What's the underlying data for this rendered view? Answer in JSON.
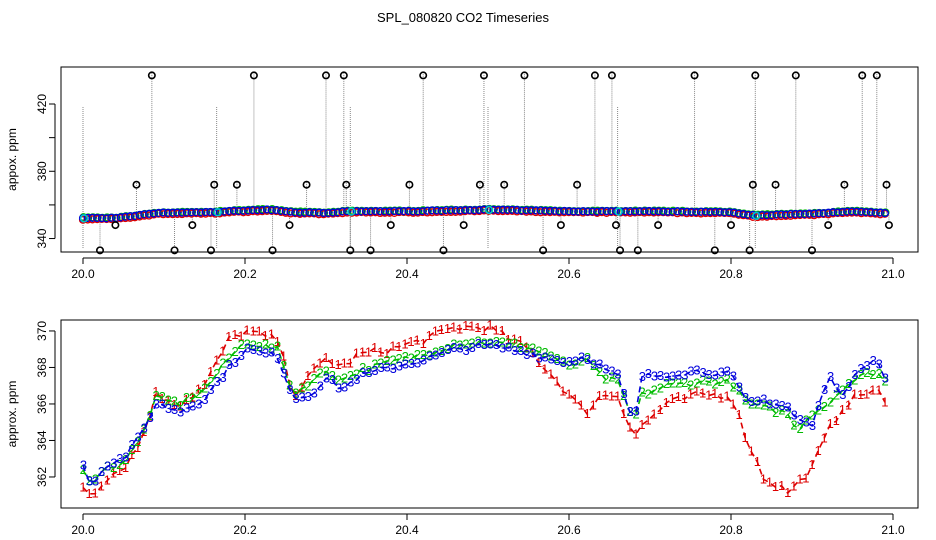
{
  "chart_data": {
    "title": "SPL_080820  CO2 Timeseries",
    "colors": {
      "red": "#dd0000",
      "green": "#00bb00",
      "blue": "#0000dd",
      "cyan": "#00c8c8",
      "black": "#000000",
      "gray": "#888888"
    },
    "panels": [
      {
        "type": "scatter",
        "ylabel": "appox. ppm",
        "xlim": [
          20.0,
          21.0
        ],
        "ylim": [
          332,
          442
        ],
        "xticks": [
          20.0,
          20.2,
          20.4,
          20.6,
          20.8,
          21.0
        ],
        "xtick_labels": [
          "20.0",
          "20.2",
          "20.4",
          "20.6",
          "20.8",
          "21.0"
        ],
        "yticks": [
          340,
          380,
          420
        ],
        "ytick_labels": [
          "340",
          "380",
          "420"
        ],
        "extra_yticks": [
          360,
          400
        ],
        "segments": [
          [
            20.0,
            20.165
          ],
          [
            20.165,
            20.33
          ],
          [
            20.33,
            20.5
          ],
          [
            20.5,
            20.66
          ],
          [
            20.66,
            20.83
          ],
          [
            20.83,
            20.99
          ]
        ],
        "baseline": {
          "x": [
            20.0,
            20.04,
            20.06,
            20.09,
            20.16,
            20.2,
            20.23,
            20.26,
            20.3,
            20.33,
            20.4,
            20.5,
            20.6,
            20.66,
            20.7,
            20.8,
            20.83,
            20.86,
            20.9,
            20.95,
            20.99
          ],
          "y": [
            352,
            352,
            353,
            355,
            355.5,
            356.5,
            357,
            355.5,
            355,
            356,
            356,
            357,
            356,
            356,
            356,
            355.5,
            353.5,
            354,
            354.5,
            356,
            355
          ]
        },
        "spikes": {
          "x": [
            20.021,
            20.04,
            20.066,
            20.085,
            20.113,
            20.135,
            20.158,
            20.162,
            20.19,
            20.211,
            20.234,
            20.255,
            20.276,
            20.3,
            20.322,
            20.325,
            20.33,
            20.355,
            20.38,
            20.403,
            20.42,
            20.445,
            20.47,
            20.49,
            20.495,
            20.52,
            20.545,
            20.568,
            20.59,
            20.61,
            20.632,
            20.653,
            20.658,
            20.663,
            20.685,
            20.71,
            20.755,
            20.78,
            20.8,
            20.823,
            20.827,
            20.83,
            20.855,
            20.88,
            20.9,
            20.92,
            20.94,
            20.962,
            20.98,
            20.992,
            20.995
          ],
          "y": [
            333,
            348,
            372,
            437,
            333,
            348,
            333,
            372,
            372,
            437,
            333,
            348,
            372,
            437,
            437,
            372,
            333,
            333,
            348,
            372,
            437,
            333,
            348,
            372,
            437,
            372,
            437,
            333,
            348,
            372,
            437,
            437,
            348,
            333,
            333,
            348,
            437,
            333,
            348,
            333,
            372,
            437,
            372,
            437,
            333,
            348,
            372,
            437,
            437,
            372,
            348
          ]
        }
      },
      {
        "type": "line",
        "ylabel": "approx. ppm",
        "xlim": [
          20.0,
          21.0
        ],
        "ylim": [
          360.3,
          370.6
        ],
        "xticks": [
          20.0,
          20.2,
          20.4,
          20.6,
          20.8,
          21.0
        ],
        "xtick_labels": [
          "20.0",
          "20.2",
          "20.4",
          "20.6",
          "20.8",
          "21.0"
        ],
        "yticks": [
          362,
          364,
          366,
          368,
          370
        ],
        "ytick_labels": [
          "362",
          "364",
          "366",
          "368",
          "370"
        ],
        "series": [
          {
            "name": "1",
            "label": "1",
            "color": "#dd0000",
            "x": [
              20.0,
              20.01,
              20.03,
              20.05,
              20.07,
              20.09,
              20.12,
              20.15,
              20.18,
              20.2,
              20.24,
              20.26,
              20.28,
              20.3,
              20.32,
              20.34,
              20.38,
              20.42,
              20.46,
              20.5,
              20.55,
              20.58,
              20.6,
              20.62,
              20.64,
              20.66,
              20.68,
              20.69,
              20.72,
              20.76,
              20.8,
              20.82,
              20.84,
              20.87,
              20.88,
              20.9,
              20.92,
              20.94,
              20.96,
              20.98,
              20.99
            ],
            "y": [
              361.5,
              361.0,
              362.0,
              362.5,
              363.8,
              366.5,
              366.0,
              367.0,
              369.5,
              370.0,
              369.5,
              366.5,
              367.5,
              368.5,
              368.0,
              368.7,
              369.0,
              369.5,
              370.2,
              370.2,
              369.0,
              367.5,
              366.5,
              365.5,
              366.5,
              366.5,
              364.2,
              364.8,
              366.0,
              366.5,
              366.5,
              364.0,
              362.0,
              361.2,
              361.5,
              362.5,
              364.5,
              366.0,
              366.5,
              366.8,
              366.0
            ]
          },
          {
            "name": "2",
            "label": "2",
            "color": "#00bb00",
            "x": [
              20.0,
              20.01,
              20.03,
              20.05,
              20.07,
              20.09,
              20.12,
              20.15,
              20.18,
              20.2,
              20.24,
              20.26,
              20.28,
              20.3,
              20.32,
              20.34,
              20.38,
              20.42,
              20.46,
              20.5,
              20.55,
              20.58,
              20.6,
              20.62,
              20.64,
              20.66,
              20.68,
              20.69,
              20.72,
              20.76,
              20.8,
              20.82,
              20.84,
              20.87,
              20.88,
              20.9,
              20.92,
              20.94,
              20.96,
              20.98,
              20.99
            ],
            "y": [
              362.3,
              361.8,
              362.5,
              362.8,
              364.0,
              366.3,
              366.0,
              366.8,
              368.5,
              369.4,
              369.0,
              366.5,
              367.2,
              367.8,
              367.3,
              367.8,
              368.3,
              368.7,
              369.3,
              369.4,
              369.1,
              368.6,
              368.0,
              368.5,
              367.5,
              367.2,
              365.0,
              366.5,
              367.0,
              367.2,
              367.2,
              366.0,
              365.8,
              365.5,
              364.5,
              365.5,
              366.0,
              367.0,
              367.5,
              367.8,
              367.2
            ]
          },
          {
            "name": "3",
            "label": "3",
            "color": "#0000dd",
            "x": [
              20.0,
              20.01,
              20.03,
              20.05,
              20.07,
              20.09,
              20.12,
              20.15,
              20.18,
              20.2,
              20.24,
              20.26,
              20.28,
              20.3,
              20.32,
              20.34,
              20.38,
              20.42,
              20.46,
              20.5,
              20.55,
              20.58,
              20.6,
              20.62,
              20.64,
              20.66,
              20.68,
              20.69,
              20.72,
              20.76,
              20.8,
              20.82,
              20.84,
              20.87,
              20.88,
              20.9,
              20.92,
              20.94,
              20.96,
              20.98,
              20.99
            ],
            "y": [
              362.6,
              361.6,
              362.7,
              363.0,
              364.2,
              366.0,
              365.6,
              366.3,
              368.0,
              369.0,
              368.6,
              366.3,
              366.5,
              367.4,
              366.8,
              367.5,
              368.0,
              368.4,
              369.0,
              369.2,
              368.8,
              368.4,
              368.3,
              368.6,
              368.0,
              367.5,
              364.8,
              367.5,
              367.6,
              367.8,
              367.6,
              366.0,
              366.2,
              365.8,
              365.2,
              364.8,
              367.5,
              366.5,
              368.0,
              368.6,
              367.4
            ]
          }
        ]
      }
    ]
  }
}
